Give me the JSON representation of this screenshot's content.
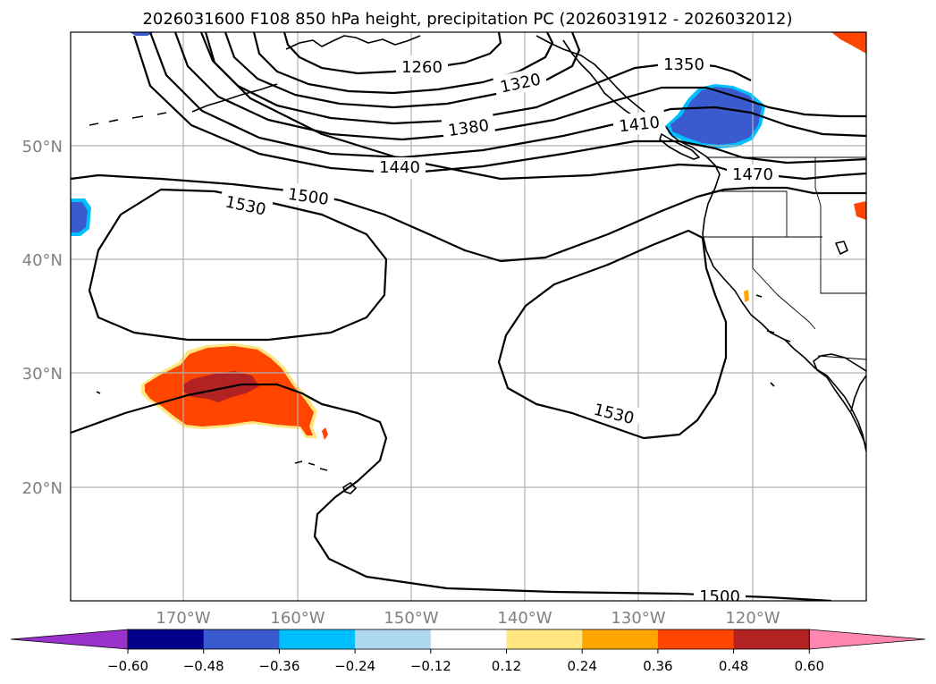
{
  "title": "2026031600 F108 850 hPa height, precipitation PC (2026031912 - 2026032012)",
  "lat_labels": [
    "50°N",
    "40°N",
    "30°N",
    "20°N"
  ],
  "lon_labels": [
    "170°W",
    "160°W",
    "150°W",
    "140°W",
    "130°W",
    "120°W"
  ],
  "contour_labels": {
    "c1260": "1260",
    "c1320": "1320",
    "c1350": "1350",
    "c1380": "1380",
    "c1410": "1410",
    "c1440": "1440",
    "c1470": "1470",
    "c1500a": "1500",
    "c1500b": "1500",
    "c1530a": "1530",
    "c1530b": "1530"
  },
  "colorbar": {
    "ticks": [
      "−0.60",
      "−0.48",
      "−0.36",
      "−0.24",
      "−0.12",
      "0.12",
      "0.24",
      "0.36",
      "0.48",
      "0.60"
    ],
    "colors": [
      "#9932cc",
      "#00008b",
      "#3a5bcf",
      "#00bfff",
      "#add8f0",
      "#ffffff",
      "#ffe680",
      "#ffa500",
      "#ff4500",
      "#b22222",
      "#ff86b0"
    ]
  },
  "precip_colors": {
    "pos_light": "#ffe680",
    "pos_mid": "#ff4500",
    "pos_high": "#b22222",
    "neg_light": "#00bfff",
    "neg_mid": "#3a5bcf"
  }
}
